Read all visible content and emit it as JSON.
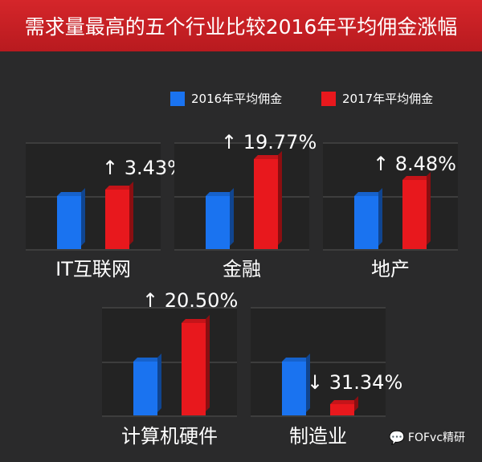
{
  "title": "需求量最高的五个行业比较2016年平均佣金涨幅",
  "colors": {
    "y2016": "#1a73f0",
    "y2017": "#e8181d",
    "title_bg": "#c8202a"
  },
  "chart_data": {
    "type": "bar",
    "title": "需求量最高的五个行业比较2016年平均佣金涨幅",
    "legend": [
      "2016年平均佣金",
      "2017年平均佣金"
    ],
    "legend_position": "top-right",
    "categories": [
      "IT互联网",
      "金融",
      "地产",
      "计算机硬件",
      "制造业"
    ],
    "change_labels": [
      "↑ 3.43%",
      "↑ 19.77%",
      "↑ 8.48%",
      "↑ 20.50%",
      "↓ 31.34%"
    ],
    "series": [
      {
        "name": "2016年平均佣金",
        "values": [
          100,
          100,
          100,
          100,
          100
        ]
      },
      {
        "name": "2017年平均佣金",
        "values": [
          103.43,
          119.77,
          108.48,
          120.5,
          68.66
        ]
      }
    ],
    "unit": "index (2016 = 100)"
  },
  "watermark": "FOFvc精研"
}
